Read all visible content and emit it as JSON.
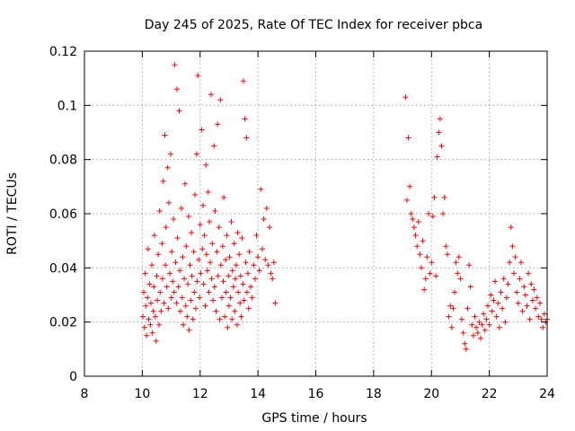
{
  "chart_data": {
    "type": "scatter",
    "title": "Day 245 of 2025, Rate Of TEC Index for receiver pbca",
    "xlabel": "GPS time / hours",
    "ylabel": "ROTI / TECUs",
    "xlim": [
      8,
      24
    ],
    "ylim": [
      0,
      0.12
    ],
    "x_ticks": [
      8,
      10,
      12,
      14,
      16,
      18,
      20,
      22,
      24
    ],
    "x_tick_labels": [
      "8",
      "10",
      "12",
      "14",
      "16",
      "18",
      "20",
      "22",
      "24"
    ],
    "y_ticks": [
      0,
      0.02,
      0.04,
      0.06,
      0.08,
      0.1,
      0.12
    ],
    "y_tick_labels": [
      "0",
      "0.02",
      "0.04",
      "0.06",
      "0.08",
      "0.1",
      "0.12"
    ],
    "grid": true,
    "marker": "+",
    "marker_color": "#ff0000",
    "series": [
      {
        "name": "pbca",
        "points": [
          [
            10.02,
            0.022
          ],
          [
            10.05,
            0.031
          ],
          [
            10.08,
            0.018
          ],
          [
            10.1,
            0.038
          ],
          [
            10.12,
            0.026
          ],
          [
            10.15,
            0.015
          ],
          [
            10.18,
            0.029
          ],
          [
            10.2,
            0.047
          ],
          [
            10.22,
            0.021
          ],
          [
            10.25,
            0.034
          ],
          [
            10.28,
            0.019
          ],
          [
            10.3,
            0.027
          ],
          [
            10.33,
            0.041
          ],
          [
            10.35,
            0.016
          ],
          [
            10.38,
            0.024
          ],
          [
            10.4,
            0.033
          ],
          [
            10.42,
            0.052
          ],
          [
            10.45,
            0.022
          ],
          [
            10.48,
            0.013
          ],
          [
            10.5,
            0.037
          ],
          [
            10.52,
            0.028
          ],
          [
            10.55,
            0.045
          ],
          [
            10.58,
            0.019
          ],
          [
            10.6,
            0.061
          ],
          [
            10.62,
            0.031
          ],
          [
            10.65,
            0.024
          ],
          [
            10.68,
            0.049
          ],
          [
            10.7,
            0.036
          ],
          [
            10.72,
            0.072
          ],
          [
            10.75,
            0.027
          ],
          [
            10.78,
            0.089
          ],
          [
            10.8,
            0.041
          ],
          [
            10.82,
            0.055
          ],
          [
            10.85,
            0.033
          ],
          [
            10.88,
            0.077
          ],
          [
            10.9,
            0.025
          ],
          [
            10.92,
            0.064
          ],
          [
            10.95,
            0.038
          ],
          [
            10.98,
            0.082
          ],
          [
            11.0,
            0.029
          ],
          [
            11.02,
            0.046
          ],
          [
            11.05,
            0.035
          ],
          [
            11.08,
            0.058
          ],
          [
            11.1,
            0.031
          ],
          [
            11.12,
            0.115
          ],
          [
            11.15,
            0.042
          ],
          [
            11.18,
            0.027
          ],
          [
            11.2,
            0.106
          ],
          [
            11.22,
            0.051
          ],
          [
            11.25,
            0.033
          ],
          [
            11.28,
            0.098
          ],
          [
            11.3,
            0.039
          ],
          [
            11.32,
            0.024
          ],
          [
            11.35,
            0.062
          ],
          [
            11.38,
            0.029
          ],
          [
            11.4,
            0.044
          ],
          [
            11.42,
            0.019
          ],
          [
            11.45,
            0.036
          ],
          [
            11.48,
            0.071
          ],
          [
            11.5,
            0.026
          ],
          [
            11.52,
            0.048
          ],
          [
            11.55,
            0.022
          ],
          [
            11.58,
            0.034
          ],
          [
            11.6,
            0.059
          ],
          [
            11.62,
            0.017
          ],
          [
            11.65,
            0.041
          ],
          [
            11.68,
            0.028
          ],
          [
            11.7,
            0.053
          ],
          [
            11.72,
            0.037
          ],
          [
            11.75,
            0.021
          ],
          [
            11.78,
            0.046
          ],
          [
            11.8,
            0.031
          ],
          [
            11.82,
            0.067
          ],
          [
            11.85,
            0.025
          ],
          [
            11.88,
            0.082
          ],
          [
            11.9,
            0.035
          ],
          [
            11.92,
            0.111
          ],
          [
            11.95,
            0.043
          ],
          [
            11.98,
            0.029
          ],
          [
            12.0,
            0.056
          ],
          [
            12.02,
            0.038
          ],
          [
            12.05,
            0.091
          ],
          [
            12.08,
            0.047
          ],
          [
            12.1,
            0.063
          ],
          [
            12.12,
            0.034
          ],
          [
            12.15,
            0.052
          ],
          [
            12.18,
            0.026
          ],
          [
            12.2,
            0.078
          ],
          [
            12.22,
            0.045
          ],
          [
            12.25,
            0.039
          ],
          [
            12.28,
            0.068
          ],
          [
            12.3,
            0.031
          ],
          [
            12.32,
            0.057
          ],
          [
            12.35,
            0.042
          ],
          [
            12.38,
            0.104
          ],
          [
            12.4,
            0.036
          ],
          [
            12.42,
            0.049
          ],
          [
            12.45,
            0.028
          ],
          [
            12.48,
            0.085
          ],
          [
            12.5,
            0.033
          ],
          [
            12.52,
            0.061
          ],
          [
            12.55,
            0.024
          ],
          [
            12.58,
            0.046
          ],
          [
            12.6,
            0.093
          ],
          [
            12.62,
            0.037
          ],
          [
            12.65,
            0.055
          ],
          [
            12.68,
            0.021
          ],
          [
            12.7,
            0.102
          ],
          [
            12.72,
            0.041
          ],
          [
            12.75,
            0.029
          ],
          [
            12.78,
            0.048
          ],
          [
            12.8,
            0.035
          ],
          [
            12.82,
            0.066
          ],
          [
            12.85,
            0.022
          ],
          [
            12.88,
            0.043
          ],
          [
            12.9,
            0.031
          ],
          [
            12.92,
            0.052
          ],
          [
            12.95,
            0.018
          ],
          [
            12.98,
            0.037
          ],
          [
            13.0,
            0.026
          ],
          [
            13.02,
            0.044
          ],
          [
            13.05,
            0.029
          ],
          [
            13.08,
            0.057
          ],
          [
            13.1,
            0.021
          ],
          [
            13.12,
            0.039
          ],
          [
            13.15,
            0.033
          ],
          [
            13.18,
            0.049
          ],
          [
            13.2,
            0.024
          ],
          [
            13.22,
            0.036
          ],
          [
            13.25,
            0.041
          ],
          [
            13.28,
            0.019
          ],
          [
            13.3,
            0.053
          ],
          [
            13.32,
            0.031
          ],
          [
            13.35,
            0.045
          ],
          [
            13.38,
            0.027
          ],
          [
            13.4,
            0.037
          ],
          [
            13.42,
            0.022
          ],
          [
            13.45,
            0.051
          ],
          [
            13.48,
            0.034
          ],
          [
            13.5,
            0.109
          ],
          [
            13.52,
            0.028
          ],
          [
            13.55,
            0.095
          ],
          [
            13.58,
            0.042
          ],
          [
            13.6,
            0.088
          ],
          [
            13.62,
            0.031
          ],
          [
            13.65,
            0.038
          ],
          [
            13.68,
            0.025
          ],
          [
            13.7,
            0.046
          ],
          [
            13.75,
            0.033
          ],
          [
            13.8,
            0.029
          ],
          [
            13.85,
            0.041
          ],
          [
            13.9,
            0.036
          ],
          [
            13.95,
            0.052
          ],
          [
            14.0,
            0.044
          ],
          [
            14.05,
            0.039
          ],
          [
            14.1,
            0.069
          ],
          [
            14.15,
            0.047
          ],
          [
            14.2,
            0.058
          ],
          [
            14.25,
            0.043
          ],
          [
            14.3,
            0.062
          ],
          [
            14.35,
            0.041
          ],
          [
            14.4,
            0.055
          ],
          [
            14.45,
            0.038
          ],
          [
            14.5,
            0.036
          ],
          [
            14.55,
            0.042
          ],
          [
            14.6,
            0.027
          ],
          [
            19.1,
            0.103
          ],
          [
            19.15,
            0.065
          ],
          [
            19.2,
            0.088
          ],
          [
            19.25,
            0.07
          ],
          [
            19.3,
            0.06
          ],
          [
            19.35,
            0.058
          ],
          [
            19.4,
            0.055
          ],
          [
            19.45,
            0.052
          ],
          [
            19.5,
            0.048
          ],
          [
            19.55,
            0.057
          ],
          [
            19.6,
            0.045
          ],
          [
            19.65,
            0.04
          ],
          [
            19.7,
            0.05
          ],
          [
            19.75,
            0.032
          ],
          [
            19.8,
            0.036
          ],
          [
            19.85,
            0.044
          ],
          [
            19.9,
            0.06
          ],
          [
            19.95,
            0.038
          ],
          [
            20.0,
            0.042
          ],
          [
            20.05,
            0.059
          ],
          [
            20.1,
            0.066
          ],
          [
            20.15,
            0.037
          ],
          [
            20.2,
            0.081
          ],
          [
            20.25,
            0.09
          ],
          [
            20.3,
            0.095
          ],
          [
            20.35,
            0.085
          ],
          [
            20.4,
            0.06
          ],
          [
            20.45,
            0.066
          ],
          [
            20.5,
            0.048
          ],
          [
            20.55,
            0.045
          ],
          [
            20.6,
            0.022
          ],
          [
            20.65,
            0.026
          ],
          [
            20.7,
            0.018
          ],
          [
            20.75,
            0.025
          ],
          [
            20.8,
            0.031
          ],
          [
            20.85,
            0.042
          ],
          [
            20.9,
            0.038
          ],
          [
            20.95,
            0.044
          ],
          [
            21.0,
            0.036
          ],
          [
            21.05,
            0.021
          ],
          [
            21.1,
            0.016
          ],
          [
            21.15,
            0.012
          ],
          [
            21.2,
            0.01
          ],
          [
            21.25,
            0.025
          ],
          [
            21.3,
            0.041
          ],
          [
            21.35,
            0.033
          ],
          [
            21.4,
            0.019
          ],
          [
            21.45,
            0.015
          ],
          [
            21.5,
            0.022
          ],
          [
            21.55,
            0.018
          ],
          [
            21.6,
            0.016
          ],
          [
            21.65,
            0.02
          ],
          [
            21.7,
            0.014
          ],
          [
            21.75,
            0.019
          ],
          [
            21.8,
            0.023
          ],
          [
            21.85,
            0.017
          ],
          [
            21.9,
            0.021
          ],
          [
            21.95,
            0.026
          ],
          [
            22.0,
            0.019
          ],
          [
            22.05,
            0.03
          ],
          [
            22.1,
            0.024
          ],
          [
            22.15,
            0.028
          ],
          [
            22.2,
            0.035
          ],
          [
            22.25,
            0.022
          ],
          [
            22.3,
            0.027
          ],
          [
            22.35,
            0.018
          ],
          [
            22.4,
            0.031
          ],
          [
            22.45,
            0.025
          ],
          [
            22.5,
            0.036
          ],
          [
            22.55,
            0.02
          ],
          [
            22.6,
            0.029
          ],
          [
            22.65,
            0.034
          ],
          [
            22.7,
            0.042
          ],
          [
            22.75,
            0.055
          ],
          [
            22.8,
            0.048
          ],
          [
            22.85,
            0.038
          ],
          [
            22.9,
            0.044
          ],
          [
            22.95,
            0.031
          ],
          [
            23.0,
            0.027
          ],
          [
            23.05,
            0.036
          ],
          [
            23.1,
            0.042
          ],
          [
            23.15,
            0.024
          ],
          [
            23.2,
            0.033
          ],
          [
            23.25,
            0.03
          ],
          [
            23.3,
            0.026
          ],
          [
            23.35,
            0.038
          ],
          [
            23.4,
            0.021
          ],
          [
            23.45,
            0.034
          ],
          [
            23.5,
            0.028
          ],
          [
            23.55,
            0.032
          ],
          [
            23.6,
            0.025
          ],
          [
            23.65,
            0.029
          ],
          [
            23.7,
            0.022
          ],
          [
            23.75,
            0.027
          ],
          [
            23.8,
            0.021
          ],
          [
            23.85,
            0.018
          ],
          [
            23.9,
            0.023
          ],
          [
            23.95,
            0.02
          ],
          [
            24.0,
            0.021
          ]
        ]
      }
    ]
  }
}
